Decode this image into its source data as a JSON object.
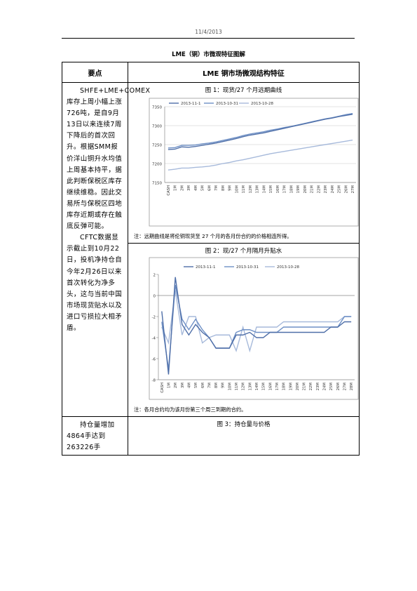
{
  "header": {
    "date": "11/4/2013"
  },
  "title": "LME（铜）市微观特征图解",
  "table": {
    "col1_header": "要点",
    "col2_header": "LME 铜市场微观结构特征",
    "row1_paragraphs": [
      "SHFE+LME+COMEX库存上周小幅上涨726吨，是自9月13日以来连续7周下降后的首次回升。根据SMM报价洋山铜升水均值上周基本持平，据此判断保税区库存继续维稳。因此交易所与保税区四地库存近期或存在触底反弹可能。",
      "CFTC数据显示截止到10月22日，投机净持仓自今年2月26日以来首次转化为净多头，这与当前中国市场现货贴水以及进口亏损拉大相矛盾。"
    ],
    "row3_text": "持仓量增加4864手达到263226手"
  },
  "figure1": {
    "caption": "图 1：现货/27 个月远期曲线",
    "note": "注：远期曲线是将伦铜现货至 27 个月的各月份合约的价格相连所得。"
  },
  "figure2": {
    "caption": "图 2：现/27 个月隔月升贴水",
    "note": "注：各月合约均为该月份第三个周三到期的合约。"
  },
  "figure3": {
    "caption": "图 3：持仓量与价格"
  },
  "chart_data": [
    {
      "type": "line",
      "categories": [
        "CASH",
        "1M",
        "2M",
        "3M",
        "4M",
        "5M",
        "6M",
        "7M",
        "8M",
        "9M",
        "10M",
        "11M",
        "12M",
        "13M",
        "14M",
        "15M",
        "16M",
        "17M",
        "18M",
        "19M",
        "20M",
        "21M",
        "22M",
        "23M",
        "24M",
        "25M",
        "26M",
        "27M"
      ],
      "series": [
        {
          "name": "2013-11-1",
          "color": "#4f6fa8",
          "values": [
            7237,
            7238,
            7244,
            7243,
            7245,
            7248,
            7251,
            7254,
            7258,
            7262,
            7266,
            7271,
            7275,
            7278,
            7281,
            7285,
            7289,
            7293,
            7297,
            7301,
            7305,
            7309,
            7313,
            7317,
            7320,
            7324,
            7327,
            7330
          ]
        },
        {
          "name": "2013-10-31",
          "color": "#6e90c6",
          "values": [
            7241,
            7242,
            7248,
            7248,
            7249,
            7252,
            7254,
            7257,
            7261,
            7265,
            7269,
            7274,
            7278,
            7281,
            7284,
            7288,
            7291,
            7295,
            7298,
            7302,
            7306,
            7310,
            7314,
            7318,
            7321,
            7325,
            7329,
            7332
          ]
        },
        {
          "name": "2013-10-28",
          "color": "#a7badb",
          "values": [
            7183,
            7185,
            7188,
            7188,
            7190,
            7191,
            7193,
            7196,
            7200,
            7203,
            7207,
            7210,
            7214,
            7218,
            7222,
            7226,
            7229,
            7232,
            7235,
            7238,
            7241,
            7244,
            7247,
            7250,
            7253,
            7256,
            7259,
            7262
          ]
        }
      ],
      "ylim": [
        7150,
        7350
      ],
      "yticks": [
        7150,
        7200,
        7250,
        7300,
        7350
      ],
      "grid": true,
      "legend": "top-left"
    },
    {
      "type": "line",
      "categories": [
        "CASH",
        "1M",
        "2M",
        "3M",
        "4M",
        "5M",
        "6M",
        "7M",
        "8M",
        "9M",
        "10M",
        "11M",
        "12M",
        "13M",
        "14M",
        "15M",
        "16M",
        "17M",
        "18M",
        "19M",
        "20M",
        "21M",
        "22M",
        "23M",
        "24M",
        "25M",
        "26M",
        "27M",
        "28M"
      ],
      "series": [
        {
          "name": "2013-11-1",
          "color": "#4f6fa8",
          "values": [
            -1.5,
            -7.5,
            1.75,
            -2.75,
            -3.75,
            -2.75,
            -3.5,
            -4,
            -5,
            -5,
            -5,
            -3.75,
            -3.75,
            -3.5,
            -4,
            -4,
            -3.5,
            -3.5,
            -3.5,
            -3.5,
            -3.5,
            -3.5,
            -3.5,
            -3.5,
            -3.5,
            -3,
            -3,
            -2.5,
            -2.5
          ]
        },
        {
          "name": "2013-10-31",
          "color": "#6e90c6",
          "values": [
            -2.5,
            -7,
            1,
            -2.25,
            -3.25,
            -2.25,
            -3.25,
            -4,
            -5,
            -5,
            -5,
            -3.5,
            -3.25,
            -3.25,
            -3.5,
            -3.5,
            -3.5,
            -3.5,
            -3,
            -3,
            -3,
            -3,
            -3,
            -3,
            -3,
            -3,
            -3,
            -2,
            -2
          ]
        },
        {
          "name": "2013-10-28",
          "color": "#a7badb",
          "values": [
            -3,
            -4.5,
            0.5,
            -3.75,
            -2,
            -2,
            -4.5,
            -4,
            -3.75,
            -3.75,
            -3.75,
            -5.25,
            -3,
            -5.25,
            -3,
            -3,
            -3,
            -3,
            -2.5,
            -2.5,
            -2.5,
            -2.5,
            -2.5,
            -2.5,
            -2.5,
            -2.5,
            -2.5,
            -2,
            -2
          ]
        }
      ],
      "ylim": [
        -8,
        2
      ],
      "yticks": [
        -8,
        -6,
        -4,
        -2,
        0,
        2
      ],
      "grid": false,
      "legend": "top"
    }
  ]
}
